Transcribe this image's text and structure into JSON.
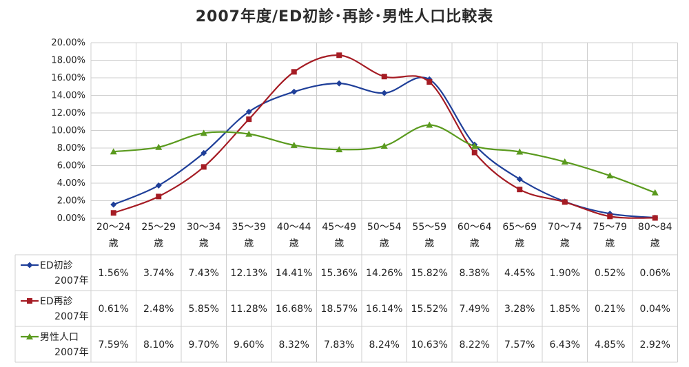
{
  "chart_data": {
    "type": "line",
    "title": "2007年度/ED初診･再診･男性人口比較表",
    "categories": [
      [
        "20～24",
        "歳"
      ],
      [
        "25～29",
        "歳"
      ],
      [
        "30～34",
        "歳"
      ],
      [
        "35～39",
        "歳"
      ],
      [
        "40～44",
        "歳"
      ],
      [
        "45～49",
        "歳"
      ],
      [
        "50～54",
        "歳"
      ],
      [
        "55～59",
        "歳"
      ],
      [
        "60～64",
        "歳"
      ],
      [
        "65～69",
        "歳"
      ],
      [
        "70～74",
        "歳"
      ],
      [
        "75～79",
        "歳"
      ],
      [
        "80～84",
        "歳"
      ]
    ],
    "ylim": [
      0,
      20
    ],
    "y_ticks": [
      "0.00%",
      "2.00%",
      "4.00%",
      "6.00%",
      "8.00%",
      "10.00%",
      "12.00%",
      "14.00%",
      "16.00%",
      "18.00%",
      "20.00%"
    ],
    "grid": true,
    "series": [
      {
        "name": [
          "ED初診",
          "2007年"
        ],
        "color": "#1f3f99",
        "marker": "diamond",
        "values": [
          1.56,
          3.74,
          7.43,
          12.13,
          14.41,
          15.36,
          14.26,
          15.82,
          8.38,
          4.45,
          1.9,
          0.52,
          0.06
        ],
        "labels": [
          "1.56%",
          "3.74%",
          "7.43%",
          "12.13%",
          "14.41%",
          "15.36%",
          "14.26%",
          "15.82%",
          "8.38%",
          "4.45%",
          "1.90%",
          "0.52%",
          "0.06%"
        ]
      },
      {
        "name": [
          "ED再診",
          "2007年"
        ],
        "color": "#a51c24",
        "marker": "square",
        "values": [
          0.61,
          2.48,
          5.85,
          11.28,
          16.68,
          18.57,
          16.14,
          15.52,
          7.49,
          3.28,
          1.85,
          0.21,
          0.04
        ],
        "labels": [
          "0.61%",
          "2.48%",
          "5.85%",
          "11.28%",
          "16.68%",
          "18.57%",
          "16.14%",
          "15.52%",
          "7.49%",
          "3.28%",
          "1.85%",
          "0.21%",
          "0.04%"
        ]
      },
      {
        "name": [
          "男性人口",
          "2007年"
        ],
        "color": "#5a9a1e",
        "marker": "triangle",
        "values": [
          7.59,
          8.1,
          9.7,
          9.6,
          8.32,
          7.83,
          8.24,
          10.63,
          8.22,
          7.57,
          6.43,
          4.85,
          2.92
        ],
        "labels": [
          "7.59%",
          "8.10%",
          "9.70%",
          "9.60%",
          "8.32%",
          "7.83%",
          "8.24%",
          "10.63%",
          "8.22%",
          "7.57%",
          "6.43%",
          "4.85%",
          "2.92%"
        ]
      }
    ]
  }
}
